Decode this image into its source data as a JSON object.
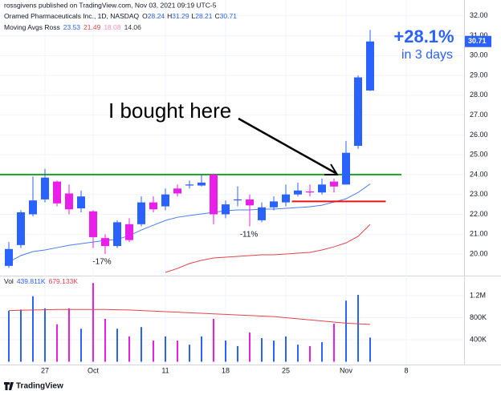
{
  "header": {
    "byline": "rossgivens published on TradingView.com, Nov 03, 2021 09:19 UTC-5",
    "symbol": "Oramed Pharmaceuticals Inc., 1D, NASDAQ",
    "ohlc": [
      {
        "key": "O",
        "value": 28.24
      },
      {
        "key": "H",
        "value": 31.29
      },
      {
        "key": "L",
        "value": 28.21
      },
      {
        "key": "C",
        "value": 30.71
      }
    ]
  },
  "indicator": {
    "name": "Moving Avgs Ross",
    "values": [
      23.53,
      21.49,
      18.08,
      14.06
    ],
    "colors": [
      "#2962ff",
      "#e5434b",
      "#f48fb1",
      "#333333"
    ]
  },
  "footer": "TradingView",
  "chart_data": [
    {
      "type": "candlestick",
      "up_color": "#2962ff",
      "down_color": "#e91ee9",
      "open": [
        19.4,
        20.45,
        22.0,
        22.75,
        23.65,
        23.05,
        22.3,
        22.15,
        20.8,
        20.4,
        21.5,
        21.5,
        22.6,
        22.4,
        23.3,
        23.45,
        23.45,
        24.0,
        22.0,
        22.7,
        22.75,
        21.7,
        22.35,
        22.6,
        23.0,
        23.15,
        23.1,
        23.65,
        23.5,
        25.45,
        28.24
      ],
      "high": [
        20.6,
        22.2,
        23.9,
        24.3,
        23.7,
        23.5,
        23.2,
        22.2,
        21.0,
        21.7,
        21.8,
        22.9,
        22.9,
        23.3,
        23.5,
        23.7,
        24.0,
        24.05,
        22.7,
        23.4,
        23.0,
        22.6,
        22.9,
        23.5,
        23.6,
        23.5,
        23.8,
        23.8,
        25.7,
        29.0,
        31.29
      ],
      "low": [
        19.3,
        20.3,
        21.9,
        22.6,
        22.4,
        22.0,
        22.1,
        20.3,
        20.0,
        20.3,
        20.6,
        21.4,
        22.1,
        22.2,
        22.9,
        23.3,
        23.4,
        21.5,
        21.8,
        22.4,
        21.4,
        21.6,
        22.2,
        22.4,
        22.9,
        22.9,
        23.0,
        23.1,
        23.5,
        25.3,
        28.21
      ],
      "close": [
        20.25,
        22.1,
        22.7,
        23.85,
        22.55,
        22.25,
        22.9,
        20.85,
        20.4,
        21.6,
        20.7,
        22.6,
        22.25,
        23.0,
        23.05,
        23.5,
        23.6,
        22.0,
        22.5,
        22.75,
        22.45,
        22.35,
        22.65,
        23.0,
        23.2,
        23.1,
        23.5,
        23.4,
        25.1,
        28.9,
        30.71
      ],
      "series": [
        {
          "color": "#4a7cf0",
          "values": [
            19.6,
            19.92,
            20.12,
            20.2,
            20.32,
            20.44,
            20.52,
            20.6,
            20.69,
            20.73,
            20.93,
            21.21,
            21.45,
            21.69,
            21.85,
            21.94,
            22.02,
            22.1,
            22.18,
            22.22,
            22.22,
            22.26,
            22.26,
            22.3,
            22.34,
            22.38,
            22.46,
            22.62,
            22.78,
            23.1,
            23.53
          ]
        },
        {
          "color": "#e5434b",
          "values": [
            null,
            null,
            null,
            null,
            null,
            null,
            null,
            null,
            null,
            null,
            null,
            null,
            null,
            19.07,
            19.27,
            19.52,
            19.68,
            19.8,
            19.84,
            19.88,
            19.92,
            19.96,
            19.96,
            20.0,
            20.04,
            20.08,
            20.2,
            20.36,
            20.56,
            20.89,
            21.49
          ]
        }
      ],
      "hlines": [
        {
          "value": 24.0,
          "color": "#1e9e1e",
          "from": -1,
          "to": 32.6
        },
        {
          "value": 22.65,
          "color": "#ee1111",
          "from": 23.5,
          "to": 31.3
        }
      ],
      "annotations": [
        "I bought here",
        "+28.1%",
        "in 3 days",
        "-17%",
        "-11%"
      ],
      "ylim": [
        18.95,
        32.8
      ],
      "yticks": [
        {
          "value": 20,
          "label": "20.00"
        },
        {
          "value": 21,
          "label": "21.00"
        },
        {
          "value": 22,
          "label": "22.00"
        },
        {
          "value": 23,
          "label": "23.00"
        },
        {
          "value": 24,
          "label": "24.00"
        },
        {
          "value": 25,
          "label": "25.00"
        },
        {
          "value": 26,
          "label": "26.00"
        },
        {
          "value": 27,
          "label": "27.00"
        },
        {
          "value": 28,
          "label": "28.00"
        },
        {
          "value": 29,
          "label": "29.00"
        },
        {
          "value": 30,
          "label": "30.00"
        },
        {
          "value": 31,
          "label": "31.00"
        },
        {
          "value": 32,
          "label": "32.00"
        }
      ],
      "xticks": [
        {
          "value": 3,
          "label": "27"
        },
        {
          "value": 7,
          "label": "Oct"
        },
        {
          "value": 13,
          "label": "11"
        },
        {
          "value": 18,
          "label": "18"
        },
        {
          "value": 23,
          "label": "25"
        },
        {
          "value": 28,
          "label": "Nov"
        },
        {
          "value": 33,
          "label": "8"
        }
      ],
      "grid": true
    },
    {
      "type": "bar",
      "title": "Vol",
      "legend_values": [
        {
          "value": 439.811,
          "label": "439.811K"
        },
        {
          "value": 679.133,
          "label": "679.133K"
        }
      ],
      "values": [
        924,
        950,
        1190,
        970,
        680,
        970,
        600,
        1430,
        780,
        600,
        460,
        630,
        385,
        460,
        385,
        310,
        460,
        780,
        385,
        285,
        530,
        430,
        385,
        460,
        310,
        285,
        355,
        690,
        1110,
        1215,
        439.811
      ],
      "series": [
        {
          "color": "#e5434b",
          "values": [
            930,
            935,
            940,
            945,
            950,
            950,
            950,
            950,
            950,
            945,
            940,
            930,
            920,
            910,
            900,
            890,
            880,
            870,
            860,
            850,
            840,
            830,
            820,
            800,
            780,
            760,
            740,
            720,
            700,
            690,
            679.133
          ]
        }
      ],
      "ylim": [
        0,
        1550
      ],
      "yticks": [
        {
          "value": 400,
          "label": "400K"
        },
        {
          "value": 800,
          "label": "800K"
        },
        {
          "value": 1200,
          "label": "1.2M"
        }
      ],
      "grid": true
    }
  ]
}
